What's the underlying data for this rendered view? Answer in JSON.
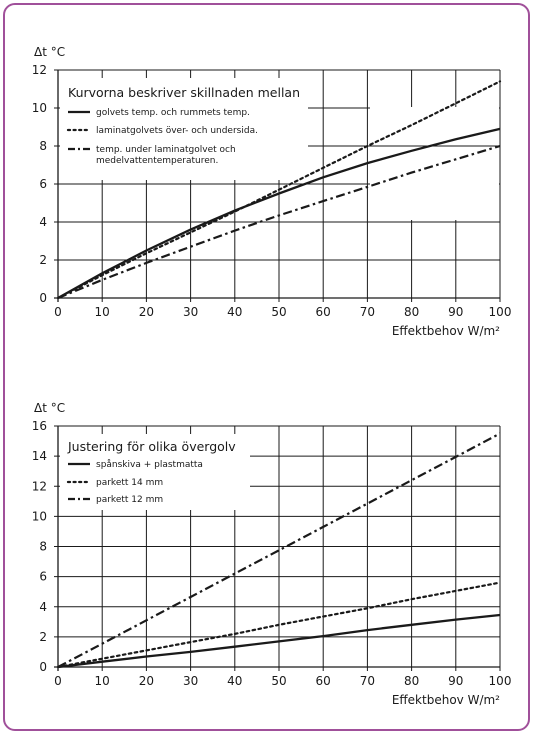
{
  "colors": {
    "frame": "#a0509a",
    "ink": "#1a1a1a"
  },
  "chart_data": [
    {
      "type": "line",
      "yunit": "Δt °C",
      "xlabel": "Effektbehov W/m²",
      "xlim": [
        0,
        100
      ],
      "ylim": [
        0,
        12
      ],
      "xticks": [
        0,
        10,
        20,
        30,
        40,
        50,
        60,
        70,
        80,
        90,
        100
      ],
      "yticks": [
        0,
        2,
        4,
        6,
        8,
        10,
        12
      ],
      "grid": true,
      "legend_title": "Kurvorna beskriver skillnaden mellan",
      "series": [
        {
          "name": "golvets temp. och rummets temp.",
          "style": "solid",
          "x": [
            0,
            10,
            20,
            30,
            40,
            50,
            60,
            70,
            80,
            90,
            100
          ],
          "y": [
            0,
            1.3,
            2.5,
            3.6,
            4.6,
            5.5,
            6.35,
            7.1,
            7.75,
            8.35,
            8.9
          ]
        },
        {
          "name": "laminatgolvets över- och undersida.",
          "style": "dotted",
          "x": [
            0,
            10,
            20,
            30,
            40,
            50,
            60,
            70,
            80,
            90,
            100
          ],
          "y": [
            0,
            1.2,
            2.35,
            3.45,
            4.55,
            5.7,
            6.85,
            8.0,
            9.1,
            10.25,
            11.4
          ]
        },
        {
          "name": "temp. under laminatgolvet och medelvattentemperaturen.",
          "style": "dashdot",
          "x": [
            0,
            10,
            20,
            30,
            40,
            50,
            60,
            70,
            80,
            90,
            100
          ],
          "y": [
            0,
            0.95,
            1.85,
            2.7,
            3.55,
            4.35,
            5.1,
            5.85,
            6.6,
            7.3,
            8.0
          ]
        }
      ]
    },
    {
      "type": "line",
      "yunit": "Δt °C",
      "xlabel": "Effektbehov W/m²",
      "xlim": [
        0,
        100
      ],
      "ylim": [
        0,
        16
      ],
      "xticks": [
        0,
        10,
        20,
        30,
        40,
        50,
        60,
        70,
        80,
        90,
        100
      ],
      "yticks": [
        0,
        2,
        4,
        6,
        8,
        10,
        12,
        14,
        16
      ],
      "grid": true,
      "legend_title": "Justering för olika övergolv",
      "series": [
        {
          "name": "spånskiva + plastmatta",
          "style": "solid",
          "x": [
            0,
            10,
            20,
            30,
            40,
            50,
            60,
            70,
            80,
            90,
            100
          ],
          "y": [
            0,
            0.35,
            0.7,
            1.0,
            1.35,
            1.7,
            2.05,
            2.45,
            2.8,
            3.15,
            3.45
          ]
        },
        {
          "name": "parkett 14 mm",
          "style": "dotted",
          "x": [
            0,
            10,
            20,
            30,
            40,
            50,
            60,
            70,
            80,
            90,
            100
          ],
          "y": [
            0,
            0.55,
            1.1,
            1.65,
            2.2,
            2.8,
            3.35,
            3.9,
            4.5,
            5.05,
            5.6
          ]
        },
        {
          "name": "parkett 12 mm",
          "style": "dashdot",
          "x": [
            0,
            10,
            20,
            30,
            40,
            50,
            60,
            70,
            80,
            90,
            100
          ],
          "y": [
            0,
            1.55,
            3.1,
            4.65,
            6.2,
            7.75,
            9.3,
            10.85,
            12.4,
            13.95,
            15.5
          ]
        }
      ]
    }
  ]
}
